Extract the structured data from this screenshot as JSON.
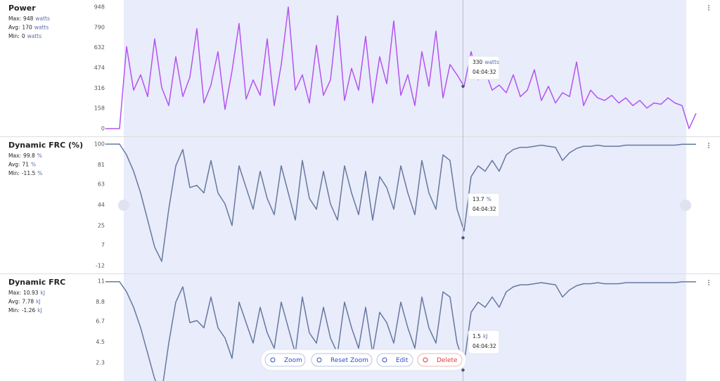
{
  "chart_data": [
    {
      "type": "line",
      "title": "Power",
      "stats": [
        {
          "label": "Max:",
          "value": 948,
          "unit": "watts"
        },
        {
          "label": "Avg:",
          "value": 170,
          "unit": "watts"
        },
        {
          "label": "Min:",
          "value": 0,
          "unit": "watts"
        }
      ],
      "ylim": [
        0,
        948
      ],
      "yticks": [
        0,
        158,
        316,
        474,
        632,
        790,
        948
      ],
      "color": "#b453f0",
      "values": [
        0,
        0,
        0,
        640,
        300,
        420,
        250,
        700,
        320,
        180,
        560,
        250,
        400,
        780,
        200,
        340,
        600,
        150,
        450,
        820,
        230,
        380,
        260,
        700,
        180,
        500,
        948,
        300,
        420,
        200,
        650,
        260,
        380,
        880,
        220,
        470,
        300,
        720,
        200,
        560,
        350,
        840,
        260,
        420,
        180,
        600,
        330,
        760,
        240,
        500,
        420,
        330,
        600,
        380,
        450,
        300,
        340,
        280,
        420,
        250,
        300,
        460,
        220,
        330,
        200,
        280,
        250,
        520,
        180,
        300,
        240,
        220,
        260,
        200,
        240,
        180,
        220,
        160,
        200,
        190,
        240,
        200,
        180,
        0,
        120
      ],
      "tooltip": {
        "value": 330,
        "unit": "watts",
        "time": "04:04:32"
      }
    },
    {
      "type": "line",
      "title": "Dynamic FRC (%)",
      "stats": [
        {
          "label": "Max:",
          "value": 99.8,
          "unit": "%"
        },
        {
          "label": "Avg:",
          "value": 71,
          "unit": "%"
        },
        {
          "label": "Min:",
          "value": -11.5,
          "unit": "%"
        }
      ],
      "ylim": [
        -12,
        100
      ],
      "yticks": [
        -12,
        7,
        25,
        44,
        63,
        81,
        100
      ],
      "color": "#66799e",
      "values": [
        100,
        100,
        100,
        90,
        75,
        55,
        30,
        5,
        -8,
        40,
        80,
        95,
        60,
        62,
        55,
        85,
        55,
        45,
        25,
        80,
        60,
        40,
        75,
        50,
        35,
        80,
        55,
        30,
        85,
        50,
        40,
        75,
        45,
        30,
        80,
        55,
        35,
        75,
        30,
        70,
        60,
        40,
        80,
        55,
        35,
        85,
        55,
        40,
        90,
        85,
        40,
        20,
        70,
        80,
        75,
        85,
        75,
        90,
        95,
        97,
        97,
        98,
        99,
        98,
        97,
        85,
        92,
        96,
        98,
        98,
        99,
        98,
        98,
        98,
        99,
        99,
        99,
        99,
        99,
        99,
        99,
        99,
        99.8,
        99.8,
        99.8
      ],
      "tooltip": {
        "value": 13.7,
        "unit": "%",
        "time": "04:04:32"
      }
    },
    {
      "type": "line",
      "title": "Dynamic FRC",
      "stats": [
        {
          "label": "Max:",
          "value": 10.93,
          "unit": "kJ"
        },
        {
          "label": "Avg:",
          "value": 7.78,
          "unit": "kJ"
        },
        {
          "label": "Min:",
          "value": -1.26,
          "unit": "kJ"
        }
      ],
      "ylim": [
        -2,
        11
      ],
      "yticks": [
        2.3,
        4.5,
        6.7,
        8.8,
        11
      ],
      "color": "#66799e",
      "values": [
        10.95,
        10.95,
        10.95,
        9.86,
        8.21,
        6.02,
        3.29,
        0.55,
        -0.88,
        4.38,
        8.76,
        10.4,
        6.57,
        6.79,
        6.02,
        9.31,
        6.02,
        4.93,
        2.74,
        8.76,
        6.57,
        4.38,
        8.21,
        5.48,
        3.83,
        8.76,
        6.02,
        3.29,
        9.31,
        5.48,
        4.38,
        8.21,
        4.93,
        3.29,
        8.76,
        6.02,
        3.83,
        8.21,
        3.29,
        7.67,
        6.57,
        4.38,
        8.76,
        6.02,
        3.83,
        9.31,
        6.02,
        4.38,
        9.86,
        9.31,
        4.38,
        2.19,
        7.67,
        8.76,
        8.21,
        9.31,
        8.21,
        9.86,
        10.4,
        10.62,
        10.62,
        10.73,
        10.84,
        10.73,
        10.62,
        9.31,
        10.07,
        10.51,
        10.73,
        10.73,
        10.84,
        10.73,
        10.73,
        10.73,
        10.84,
        10.84,
        10.84,
        10.84,
        10.84,
        10.84,
        10.84,
        10.84,
        10.93,
        10.93,
        10.93
      ],
      "tooltip": {
        "value": 1.5,
        "unit": "kJ",
        "time": "04:04:32"
      }
    }
  ],
  "toolbar": [
    "Zoom",
    "Reset Zoom",
    "Edit",
    "Delete"
  ]
}
